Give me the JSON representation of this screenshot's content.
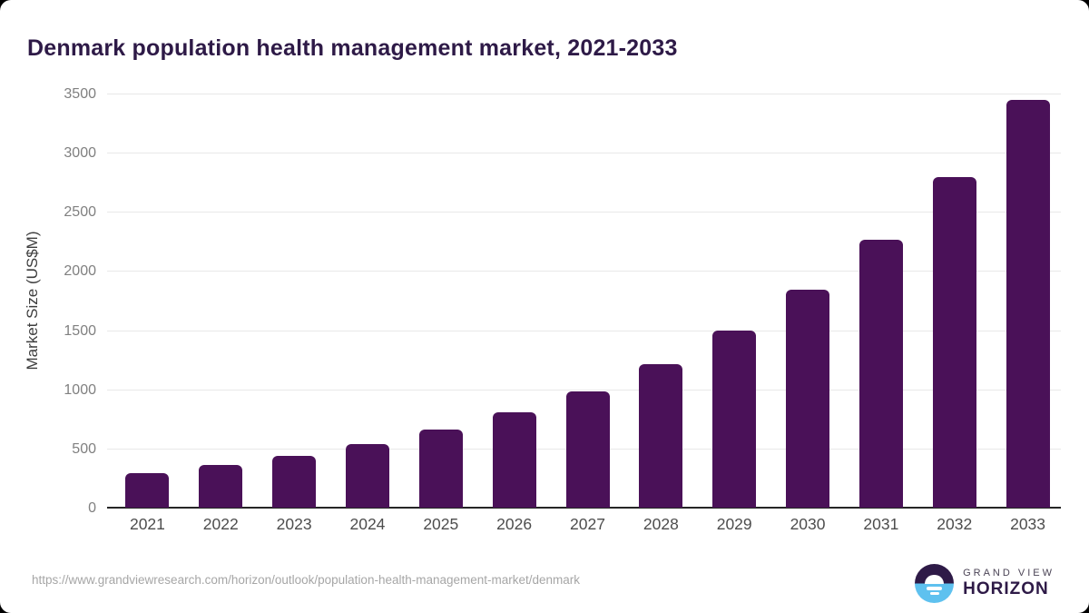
{
  "title": "Denmark population health management market, 2021-2033",
  "source_url": "https://www.grandviewresearch.com/horizon/outlook/population-health-management-market/denmark",
  "branding": {
    "logo_icon": "sunrise-horizon-icon",
    "line1": "GRAND VIEW",
    "line2": "HORIZON"
  },
  "colors": {
    "bar": "#4a1158",
    "title": "#2e1a47",
    "gridline": "#e8e8e8",
    "axis_line": "#262626",
    "y_tick_text": "#808080",
    "x_tick_text": "#4d4d4d",
    "url_text": "#a6a6a6",
    "logo_blue": "#5ec1ef",
    "logo_dark": "#2e1a47"
  },
  "chart_data": {
    "type": "bar",
    "title": "Denmark population health management market, 2021-2033",
    "categories": [
      "2021",
      "2022",
      "2023",
      "2024",
      "2025",
      "2026",
      "2027",
      "2028",
      "2029",
      "2030",
      "2031",
      "2032",
      "2033"
    ],
    "values": [
      295,
      360,
      438,
      537,
      657,
      804,
      986,
      1210,
      1497,
      1843,
      2266,
      2791,
      3443
    ],
    "xlabel": "",
    "ylabel": "Market Size (US$M)",
    "ylim": [
      0,
      3500
    ],
    "yticks": [
      0,
      500,
      1000,
      1500,
      2000,
      2500,
      3000,
      3500
    ],
    "grid": true,
    "legend": false,
    "bar_color": "#4a1158"
  }
}
